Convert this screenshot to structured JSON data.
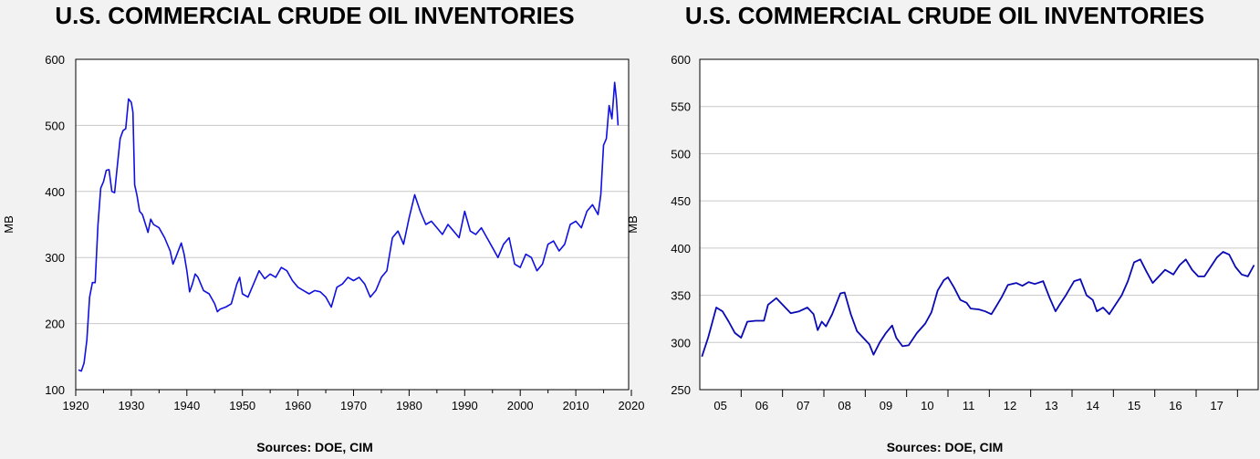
{
  "chart_data": [
    {
      "type": "line",
      "title": "U.S. COMMERCIAL CRUDE OIL INVENTORIES",
      "ylabel": "MB",
      "xlabel": "",
      "source": "Sources:  DOE, CIM",
      "xlim": [
        1920,
        2020
      ],
      "ylim": [
        100,
        600
      ],
      "x_ticks": [
        "1920",
        "1930",
        "1940",
        "1950",
        "1960",
        "1970",
        "1980",
        "1990",
        "2000",
        "2010",
        "2020"
      ],
      "y_ticks": [
        "100",
        "200",
        "300",
        "400",
        "500",
        "600"
      ],
      "grid": true,
      "legend": "none",
      "series": [
        {
          "color": "#1010e0",
          "points": [
            [
              1920.5,
              130
            ],
            [
              1921.0,
              128
            ],
            [
              1921.5,
              140
            ],
            [
              1922.0,
              175
            ],
            [
              1922.5,
              240
            ],
            [
              1923.0,
              262
            ],
            [
              1923.5,
              262
            ],
            [
              1924.0,
              350
            ],
            [
              1924.5,
              405
            ],
            [
              1925.0,
              415
            ],
            [
              1925.5,
              432
            ],
            [
              1926.0,
              433
            ],
            [
              1926.5,
              400
            ],
            [
              1927.0,
              398
            ],
            [
              1927.5,
              440
            ],
            [
              1928.0,
              480
            ],
            [
              1928.5,
              492
            ],
            [
              1929.0,
              495
            ],
            [
              1929.5,
              540
            ],
            [
              1930.0,
              535
            ],
            [
              1930.3,
              520
            ],
            [
              1930.6,
              410
            ],
            [
              1931.0,
              395
            ],
            [
              1931.5,
              370
            ],
            [
              1932.0,
              365
            ],
            [
              1932.5,
              352
            ],
            [
              1933.0,
              338
            ],
            [
              1933.5,
              358
            ],
            [
              1934.0,
              350
            ],
            [
              1935.0,
              345
            ],
            [
              1936.0,
              330
            ],
            [
              1937.0,
              310
            ],
            [
              1937.5,
              290
            ],
            [
              1938.0,
              300
            ],
            [
              1939.0,
              322
            ],
            [
              1939.5,
              305
            ],
            [
              1940.0,
              280
            ],
            [
              1940.5,
              248
            ],
            [
              1941.0,
              260
            ],
            [
              1941.5,
              275
            ],
            [
              1942.0,
              270
            ],
            [
              1943.0,
              250
            ],
            [
              1944.0,
              245
            ],
            [
              1945.0,
              230
            ],
            [
              1945.5,
              218
            ],
            [
              1946.0,
              222
            ],
            [
              1947.0,
              225
            ],
            [
              1948.0,
              230
            ],
            [
              1949.0,
              260
            ],
            [
              1949.5,
              270
            ],
            [
              1950.0,
              245
            ],
            [
              1951.0,
              240
            ],
            [
              1952.0,
              260
            ],
            [
              1953.0,
              280
            ],
            [
              1954.0,
              268
            ],
            [
              1955.0,
              275
            ],
            [
              1956.0,
              270
            ],
            [
              1957.0,
              285
            ],
            [
              1958.0,
              280
            ],
            [
              1959.0,
              265
            ],
            [
              1960.0,
              255
            ],
            [
              1961.0,
              250
            ],
            [
              1962.0,
              245
            ],
            [
              1963.0,
              250
            ],
            [
              1964.0,
              248
            ],
            [
              1965.0,
              240
            ],
            [
              1966.0,
              225
            ],
            [
              1967.0,
              255
            ],
            [
              1968.0,
              260
            ],
            [
              1969.0,
              270
            ],
            [
              1970.0,
              265
            ],
            [
              1971.0,
              270
            ],
            [
              1972.0,
              260
            ],
            [
              1973.0,
              240
            ],
            [
              1974.0,
              250
            ],
            [
              1975.0,
              270
            ],
            [
              1976.0,
              280
            ],
            [
              1977.0,
              330
            ],
            [
              1978.0,
              340
            ],
            [
              1979.0,
              320
            ],
            [
              1980.0,
              360
            ],
            [
              1981.0,
              395
            ],
            [
              1982.0,
              370
            ],
            [
              1983.0,
              350
            ],
            [
              1984.0,
              355
            ],
            [
              1985.0,
              345
            ],
            [
              1986.0,
              335
            ],
            [
              1987.0,
              350
            ],
            [
              1988.0,
              340
            ],
            [
              1989.0,
              330
            ],
            [
              1990.0,
              370
            ],
            [
              1991.0,
              340
            ],
            [
              1992.0,
              335
            ],
            [
              1993.0,
              345
            ],
            [
              1994.0,
              330
            ],
            [
              1995.0,
              315
            ],
            [
              1996.0,
              300
            ],
            [
              1997.0,
              320
            ],
            [
              1998.0,
              330
            ],
            [
              1999.0,
              290
            ],
            [
              2000.0,
              285
            ],
            [
              2001.0,
              305
            ],
            [
              2002.0,
              300
            ],
            [
              2003.0,
              280
            ],
            [
              2004.0,
              290
            ],
            [
              2005.0,
              320
            ],
            [
              2006.0,
              325
            ],
            [
              2007.0,
              310
            ],
            [
              2008.0,
              320
            ],
            [
              2009.0,
              350
            ],
            [
              2010.0,
              355
            ],
            [
              2011.0,
              345
            ],
            [
              2012.0,
              370
            ],
            [
              2013.0,
              380
            ],
            [
              2014.0,
              365
            ],
            [
              2014.5,
              395
            ],
            [
              2015.0,
              470
            ],
            [
              2015.5,
              480
            ],
            [
              2016.0,
              530
            ],
            [
              2016.5,
              510
            ],
            [
              2017.0,
              565
            ],
            [
              2017.3,
              540
            ],
            [
              2017.6,
              500
            ]
          ]
        }
      ]
    },
    {
      "type": "line",
      "title": "U.S. COMMERCIAL CRUDE OIL INVENTORIES",
      "ylabel": "MB",
      "xlabel": "",
      "source": "Sources:  DOE, CIM",
      "xlim": [
        2004.0,
        2017.5
      ],
      "ylim": [
        250,
        600
      ],
      "x_ticks": [
        "05",
        "06",
        "07",
        "08",
        "09",
        "10",
        "11",
        "12",
        "13",
        "14",
        "15",
        "16",
        "17"
      ],
      "y_ticks": [
        "250",
        "300",
        "350",
        "400",
        "450",
        "500",
        "550",
        "600"
      ],
      "grid": true,
      "legend": "none",
      "series": [
        {
          "color": "#0a0ab4",
          "points": [
            [
              2004.05,
              285
            ],
            [
              2004.2,
              305
            ],
            [
              2004.4,
              337
            ],
            [
              2004.55,
              333
            ],
            [
              2004.7,
              322
            ],
            [
              2004.85,
              310
            ],
            [
              2005.0,
              305
            ],
            [
              2005.15,
              322
            ],
            [
              2005.35,
              323
            ],
            [
              2005.55,
              323
            ],
            [
              2005.65,
              340
            ],
            [
              2005.85,
              347
            ],
            [
              2006.0,
              340
            ],
            [
              2006.2,
              331
            ],
            [
              2006.4,
              333
            ],
            [
              2006.6,
              337
            ],
            [
              2006.75,
              330
            ],
            [
              2006.85,
              313
            ],
            [
              2006.95,
              322
            ],
            [
              2007.05,
              317
            ],
            [
              2007.2,
              330
            ],
            [
              2007.4,
              352
            ],
            [
              2007.5,
              353
            ],
            [
              2007.65,
              330
            ],
            [
              2007.8,
              312
            ],
            [
              2007.95,
              305
            ],
            [
              2008.1,
              298
            ],
            [
              2008.2,
              287
            ],
            [
              2008.35,
              300
            ],
            [
              2008.5,
              310
            ],
            [
              2008.65,
              318
            ],
            [
              2008.75,
              305
            ],
            [
              2008.9,
              296
            ],
            [
              2009.05,
              297
            ],
            [
              2009.25,
              310
            ],
            [
              2009.45,
              320
            ],
            [
              2009.6,
              332
            ],
            [
              2009.75,
              355
            ],
            [
              2009.9,
              366
            ],
            [
              2010.0,
              369
            ],
            [
              2010.15,
              358
            ],
            [
              2010.3,
              345
            ],
            [
              2010.45,
              342
            ],
            [
              2010.55,
              336
            ],
            [
              2010.75,
              335
            ],
            [
              2010.9,
              333
            ],
            [
              2011.05,
              330
            ],
            [
              2011.15,
              337
            ],
            [
              2011.3,
              348
            ],
            [
              2011.45,
              361
            ],
            [
              2011.65,
              363
            ],
            [
              2011.8,
              360
            ],
            [
              2011.95,
              364
            ],
            [
              2012.1,
              362
            ],
            [
              2012.3,
              365
            ],
            [
              2012.45,
              348
            ],
            [
              2012.6,
              333
            ],
            [
              2012.7,
              340
            ],
            [
              2012.85,
              350
            ],
            [
              2013.05,
              365
            ],
            [
              2013.2,
              367
            ],
            [
              2013.35,
              350
            ],
            [
              2013.5,
              345
            ],
            [
              2013.6,
              333
            ],
            [
              2013.75,
              337
            ],
            [
              2013.9,
              330
            ],
            [
              2014.05,
              340
            ],
            [
              2014.2,
              350
            ],
            [
              2014.35,
              365
            ],
            [
              2014.5,
              385
            ],
            [
              2014.65,
              388
            ],
            [
              2014.8,
              375
            ],
            [
              2014.95,
              363
            ],
            [
              2015.1,
              370
            ],
            [
              2015.25,
              377
            ],
            [
              2015.45,
              372
            ],
            [
              2015.6,
              382
            ],
            [
              2015.75,
              388
            ],
            [
              2015.9,
              377
            ],
            [
              2016.05,
              370
            ],
            [
              2016.2,
              370
            ],
            [
              2016.35,
              380
            ],
            [
              2016.5,
              390
            ],
            [
              2016.65,
              396
            ],
            [
              2016.8,
              393
            ],
            [
              2016.95,
              380
            ],
            [
              2017.1,
              372
            ],
            [
              2017.25,
              370
            ],
            [
              2017.4,
              382
            ]
          ]
        }
      ]
    }
  ]
}
